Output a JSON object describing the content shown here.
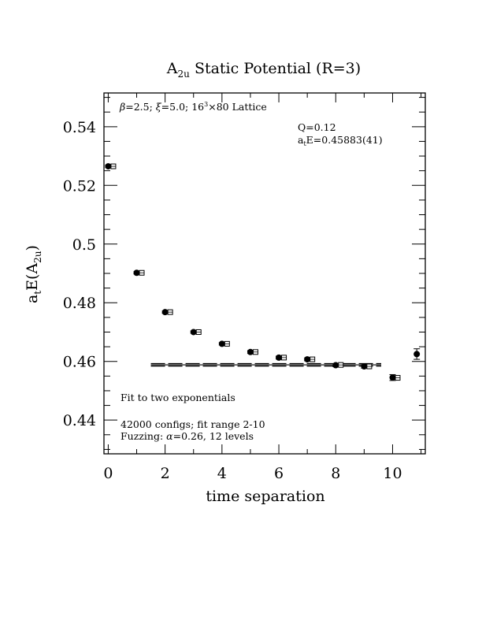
{
  "chart_data": {
    "type": "scatter",
    "title": {
      "main": "A",
      "sub": "2u",
      "rest": " Static Potential (R=3)"
    },
    "xlabel": "time separation",
    "ylabel": {
      "prefix": "a",
      "prefix_sub": "t",
      "mid": "E(A",
      "mid_sub": "2u",
      "suffix": ")"
    },
    "xlim": [
      -0.15,
      11.15
    ],
    "ylim": [
      0.4285,
      0.5515
    ],
    "x_ticks": [
      0,
      2,
      4,
      6,
      8,
      10
    ],
    "x_tick_labels": [
      "0",
      "2",
      "4",
      "6",
      "8",
      "10"
    ],
    "y_ticks": [
      0.44,
      0.46,
      0.48,
      0.5,
      0.52,
      0.54
    ],
    "y_tick_labels": [
      "0.44",
      "0.46",
      "0.48",
      "0.5",
      "0.52",
      "0.54"
    ],
    "grid": false,
    "series": [
      {
        "marker": "filled-circle",
        "x": [
          0,
          1,
          2,
          3,
          4,
          5,
          6,
          7,
          8,
          9,
          10,
          10.85
        ],
        "y": [
          0.5265,
          0.4902,
          0.4768,
          0.47,
          0.466,
          0.4632,
          0.4613,
          0.4607,
          0.4587,
          0.4583,
          0.4545,
          0.4625
        ],
        "err": [
          0.0004,
          0.0004,
          0.0004,
          0.0004,
          0.0004,
          0.0005,
          0.0005,
          0.0005,
          0.0005,
          0.0006,
          0.001,
          0.0018
        ]
      },
      {
        "marker": "open-square",
        "x": [
          0.18,
          1.18,
          2.18,
          3.18,
          4.18,
          5.18,
          6.18,
          7.18,
          8.18,
          9.18,
          10.18
        ],
        "y": [
          0.5265,
          0.4902,
          0.4768,
          0.47,
          0.466,
          0.4632,
          0.4613,
          0.4607,
          0.4588,
          0.4583,
          0.4544
        ]
      }
    ],
    "fit": {
      "y": 0.45883,
      "err": 0.00041,
      "x_range": [
        1.5,
        9.6
      ]
    },
    "annotations": {
      "lattice": {
        "beta": "β",
        "a": "=2.5; ",
        "xi": "ξ",
        "b": "=5.0; 16",
        "sup": "3",
        "c": "×80 Lattice"
      },
      "q": "Q=0.12",
      "energy": {
        "a": "a",
        "sub": "t",
        "rest": "E=0.45883(41)"
      },
      "fit_label": "Fit to two exponentials",
      "configs": "42000 configs; fit range 2-10",
      "fuzzing": {
        "a": "Fuzzing: ",
        "alpha": "α",
        "rest": "=0.26, 12 levels"
      }
    }
  }
}
